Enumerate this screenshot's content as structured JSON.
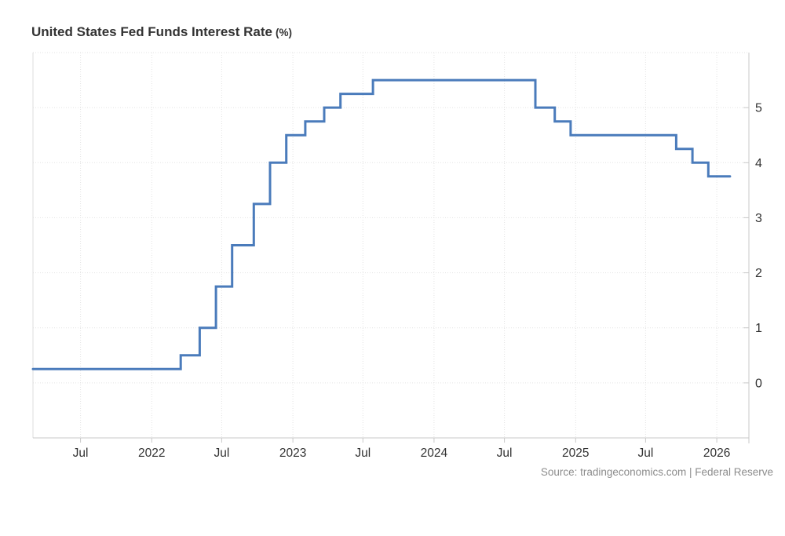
{
  "header": {
    "title": "United States Fed Funds Interest Rate",
    "title_unit": "(%)"
  },
  "footer": {
    "source": "Source: tradingeconomics.com | Federal Reserve"
  },
  "colors": {
    "line": "#4a7bbb",
    "grid": "#e3e3e3",
    "axis": "#c9c9c9",
    "plot_left_border": "#dcdcdc",
    "tick_label": "#333333",
    "title_text": "#333333",
    "source_text": "#8c8c8c"
  },
  "chart_data": {
    "type": "line",
    "step": true,
    "title": "United States Fed Funds Interest Rate (%)",
    "xlabel": "",
    "ylabel": "%",
    "grid": true,
    "legend": false,
    "series": [
      {
        "name": "Fed Funds Interest Rate",
        "points": [
          {
            "date": "2021-02-28",
            "value": 0.25
          },
          {
            "date": "2022-03-17",
            "value": 0.5
          },
          {
            "date": "2022-05-05",
            "value": 1.0
          },
          {
            "date": "2022-06-16",
            "value": 1.75
          },
          {
            "date": "2022-07-28",
            "value": 2.5
          },
          {
            "date": "2022-09-22",
            "value": 3.25
          },
          {
            "date": "2022-11-03",
            "value": 4.0
          },
          {
            "date": "2022-12-15",
            "value": 4.5
          },
          {
            "date": "2023-02-02",
            "value": 4.75
          },
          {
            "date": "2023-03-23",
            "value": 5.0
          },
          {
            "date": "2023-05-04",
            "value": 5.25
          },
          {
            "date": "2023-07-27",
            "value": 5.5
          },
          {
            "date": "2024-09-19",
            "value": 5.0
          },
          {
            "date": "2024-11-08",
            "value": 4.75
          },
          {
            "date": "2024-12-19",
            "value": 4.5
          },
          {
            "date": "2025-09-18",
            "value": 4.25
          },
          {
            "date": "2025-10-30",
            "value": 4.0
          },
          {
            "date": "2025-12-10",
            "value": 3.75
          }
        ],
        "end_date": "2026-02-04",
        "last_value": 3.75
      }
    ],
    "x_ticks": [
      {
        "date": "2021-07-01",
        "label": "Jul"
      },
      {
        "date": "2022-01-01",
        "label": "2022"
      },
      {
        "date": "2022-07-01",
        "label": "Jul"
      },
      {
        "date": "2023-01-01",
        "label": "2023"
      },
      {
        "date": "2023-07-01",
        "label": "Jul"
      },
      {
        "date": "2024-01-01",
        "label": "2024"
      },
      {
        "date": "2024-07-01",
        "label": "Jul"
      },
      {
        "date": "2025-01-01",
        "label": "2025"
      },
      {
        "date": "2025-07-01",
        "label": "Jul"
      },
      {
        "date": "2026-01-01",
        "label": "2026"
      }
    ],
    "y_ticks": [
      0,
      1,
      2,
      3,
      4,
      5
    ],
    "x_domain": [
      "2021-02-28",
      "2026-03-25"
    ],
    "y_domain": [
      -1,
      6
    ]
  }
}
